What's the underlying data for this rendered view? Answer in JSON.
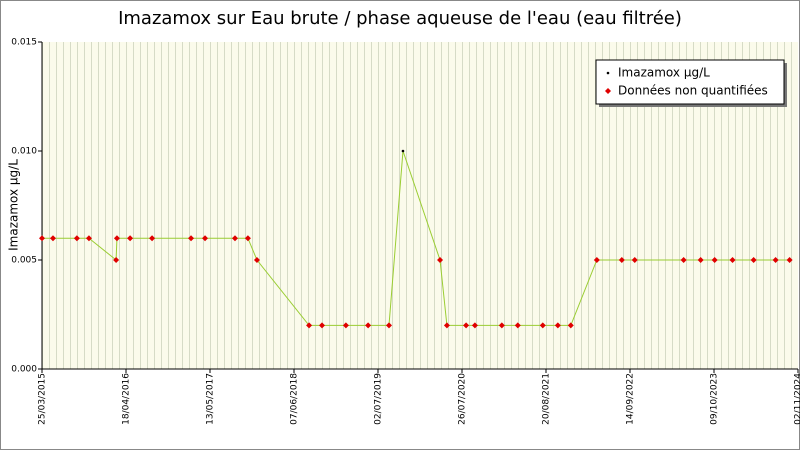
{
  "chart_data": {
    "type": "line",
    "title": "Imazamox sur Eau brute / phase aqueuse de l'eau (eau filtrée)",
    "y_label": "Imazamox µg/L",
    "x": [
      "25/03/2015",
      "15/05/2015",
      "03/09/2015",
      "29/10/2015",
      "03/03/2016",
      "07/03/2016",
      "07/05/2016",
      "17/08/2016",
      "14/02/2017",
      "20/04/2017",
      "06/09/2017",
      "05/11/2017",
      "17/12/2017",
      "16/08/2018",
      "15/10/2018",
      "03/02/2019",
      "17/05/2019",
      "22/08/2019",
      "26/10/2019",
      "15/04/2020",
      "17/05/2020",
      "14/08/2020",
      "24/09/2020",
      "27/01/2021",
      "11/04/2021",
      "05/08/2021",
      "14/10/2021",
      "13/12/2021",
      "13/04/2022",
      "07/08/2022",
      "06/10/2022",
      "21/05/2023",
      "08/08/2023",
      "12/10/2023",
      "03/01/2024",
      "10/04/2024",
      "21/07/2024",
      "24/09/2024"
    ],
    "series": [
      {
        "name": "Imazamox µg/L",
        "color": "#000000",
        "line_color": "#9acd32",
        "values": [
          0.006,
          0.006,
          0.006,
          0.006,
          0.005,
          0.006,
          0.006,
          0.006,
          0.006,
          0.006,
          0.006,
          0.006,
          0.005,
          0.002,
          0.002,
          0.002,
          0.002,
          0.002,
          0.01,
          0.005,
          0.002,
          0.002,
          0.002,
          0.002,
          0.002,
          0.002,
          0.002,
          0.002,
          0.005,
          0.005,
          0.005,
          0.005,
          0.005,
          0.005,
          0.005,
          0.005,
          0.005,
          0.005
        ]
      },
      {
        "name": "Données non quantifiées",
        "color": "#e00000",
        "values": [
          0.006,
          0.006,
          0.006,
          0.006,
          0.005,
          0.006,
          0.006,
          0.006,
          0.006,
          0.006,
          0.006,
          0.006,
          0.005,
          0.002,
          0.002,
          0.002,
          0.002,
          0.002,
          null,
          0.005,
          0.002,
          0.002,
          0.002,
          0.002,
          0.002,
          0.002,
          0.002,
          0.002,
          0.005,
          0.005,
          0.005,
          0.005,
          0.005,
          0.005,
          0.005,
          0.005,
          0.005,
          0.005
        ]
      }
    ],
    "xlim": [
      "25/03/2015",
      "02/11/2024"
    ],
    "xticks": [
      "25/03/2015",
      "18/04/2016",
      "13/05/2017",
      "07/06/2018",
      "02/07/2019",
      "26/07/2020",
      "20/08/2021",
      "14/09/2022",
      "09/10/2023",
      "02/11/2024"
    ],
    "ylim": [
      0,
      0.015
    ],
    "yticks": [
      {
        "value": 0,
        "label": "0.000"
      },
      {
        "value": 0.005,
        "label": "0.005"
      },
      {
        "value": 0.01,
        "label": "0.010"
      },
      {
        "value": 0.015,
        "label": "0.015"
      }
    ],
    "legend": "top-right"
  }
}
